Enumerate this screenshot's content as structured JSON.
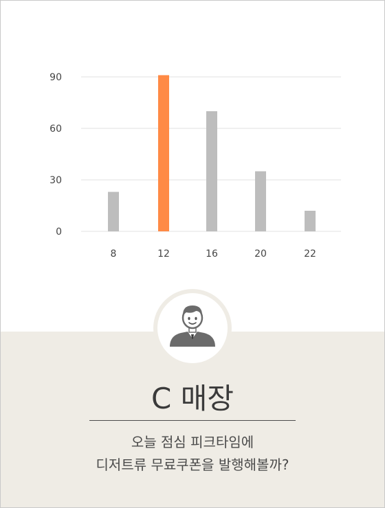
{
  "chart_data": {
    "type": "bar",
    "categories": [
      "8",
      "12",
      "16",
      "20",
      "22"
    ],
    "values": [
      23,
      91,
      70,
      35,
      12
    ],
    "highlight_index": 1,
    "yticks": [
      0,
      30,
      60,
      90
    ],
    "ylim": [
      0,
      100
    ],
    "grid": true,
    "colors": {
      "bar": "#bdbdbd",
      "highlight": "#ff8a45",
      "grid": "#e2e2e2",
      "tick_text": "#444444"
    }
  },
  "avatar": {
    "icon": "user-avatar-icon"
  },
  "store": {
    "name": "C 매장"
  },
  "description": {
    "line1": "오늘 점심 피크타임에",
    "line2": "디저트류 무료쿠폰을 발행해볼까?"
  }
}
